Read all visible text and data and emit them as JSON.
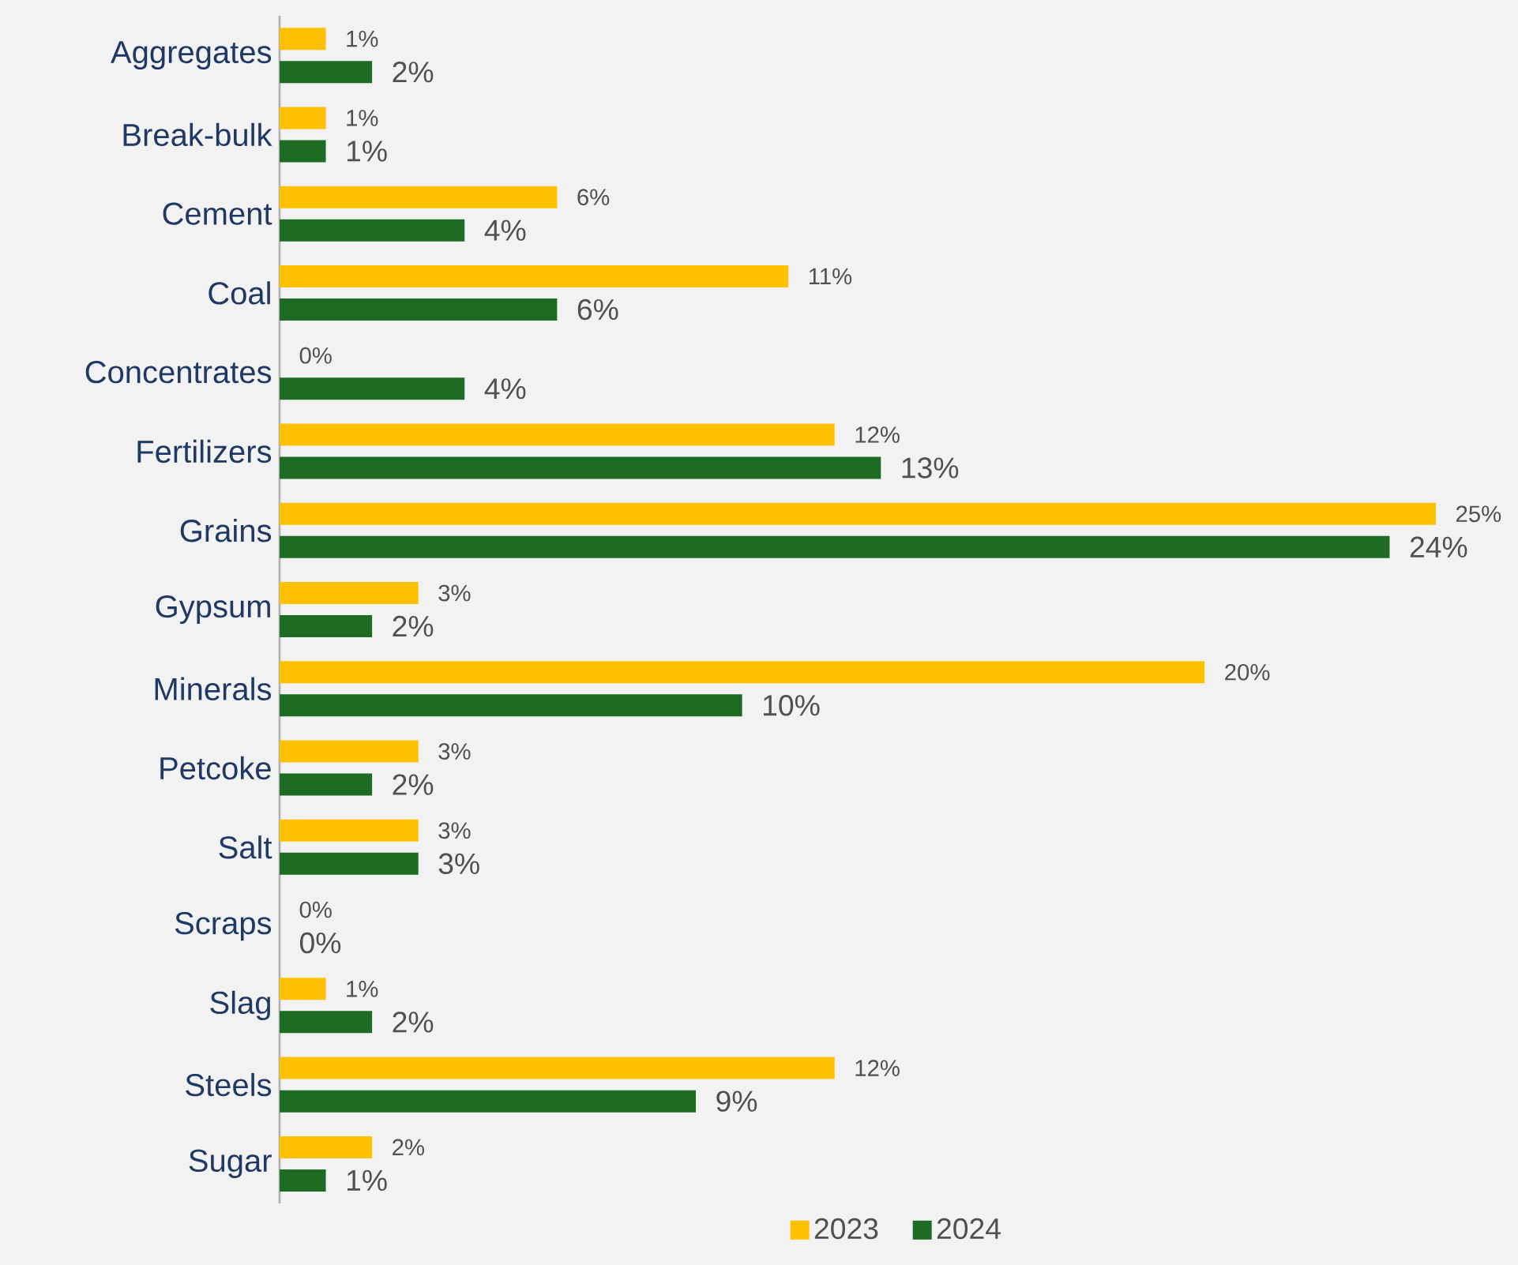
{
  "chart_data": {
    "type": "bar",
    "orientation": "horizontal",
    "categories": [
      "Aggregates",
      "Break-bulk",
      "Cement",
      "Coal",
      "Concentrates",
      "Fertilizers",
      "Grains",
      "Gypsum",
      "Minerals",
      "Petcoke",
      "Salt",
      "Scraps",
      "Slag",
      "Steels",
      "Sugar"
    ],
    "series": [
      {
        "name": "2023",
        "color": "#ffc000",
        "values": [
          1,
          1,
          6,
          11,
          0,
          12,
          25,
          3,
          20,
          3,
          3,
          0,
          1,
          12,
          2
        ],
        "value_labels": [
          "1%",
          "1%",
          "6%",
          "11%",
          "0%",
          "12%",
          "25%",
          "3%",
          "20%",
          "3%",
          "3%",
          "0%",
          "1%",
          "12%",
          "2%"
        ]
      },
      {
        "name": "2024",
        "color": "#1e6b24",
        "values": [
          2,
          1,
          4,
          6,
          4,
          13,
          24,
          2,
          10,
          2,
          3,
          0,
          2,
          9,
          1
        ],
        "value_labels": [
          "2%",
          "1%",
          "4%",
          "6%",
          "4%",
          "13%",
          "24%",
          "2%",
          "10%",
          "2%",
          "3%",
          "0%",
          "2%",
          "9%",
          "1%"
        ]
      }
    ],
    "legend": "bottom"
  }
}
